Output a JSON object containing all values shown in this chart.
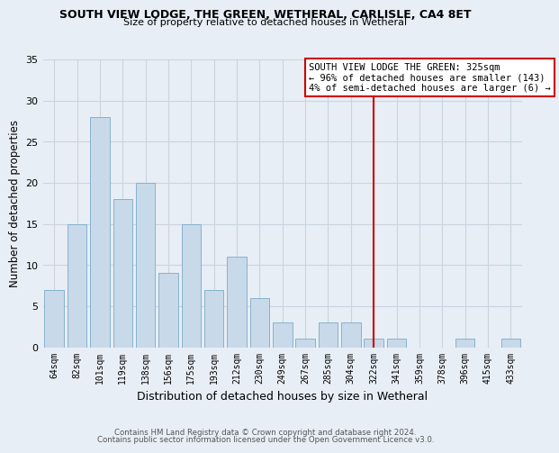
{
  "title": "SOUTH VIEW LODGE, THE GREEN, WETHERAL, CARLISLE, CA4 8ET",
  "subtitle": "Size of property relative to detached houses in Wetheral",
  "xlabel": "Distribution of detached houses by size in Wetheral",
  "ylabel": "Number of detached properties",
  "footer_line1": "Contains HM Land Registry data © Crown copyright and database right 2024.",
  "footer_line2": "Contains public sector information licensed under the Open Government Licence v3.0.",
  "bin_labels": [
    "64sqm",
    "82sqm",
    "101sqm",
    "119sqm",
    "138sqm",
    "156sqm",
    "175sqm",
    "193sqm",
    "212sqm",
    "230sqm",
    "249sqm",
    "267sqm",
    "285sqm",
    "304sqm",
    "322sqm",
    "341sqm",
    "359sqm",
    "378sqm",
    "396sqm",
    "415sqm",
    "433sqm"
  ],
  "bar_values": [
    7,
    15,
    28,
    18,
    20,
    9,
    15,
    7,
    11,
    6,
    3,
    1,
    3,
    3,
    1,
    1,
    0,
    0,
    1,
    0,
    1
  ],
  "bar_color": "#c8d9ea",
  "bar_edge_color": "#7aaac8",
  "grid_color": "#c8d4e0",
  "background_color": "#e8eef5",
  "vline_x_idx": 14,
  "vline_color": "#cc0000",
  "annotation_box_text": "SOUTH VIEW LODGE THE GREEN: 325sqm\n← 96% of detached houses are smaller (143)\n4% of semi-detached houses are larger (6) →",
  "ylim": [
    0,
    35
  ],
  "yticks": [
    0,
    5,
    10,
    15,
    20,
    25,
    30,
    35
  ]
}
